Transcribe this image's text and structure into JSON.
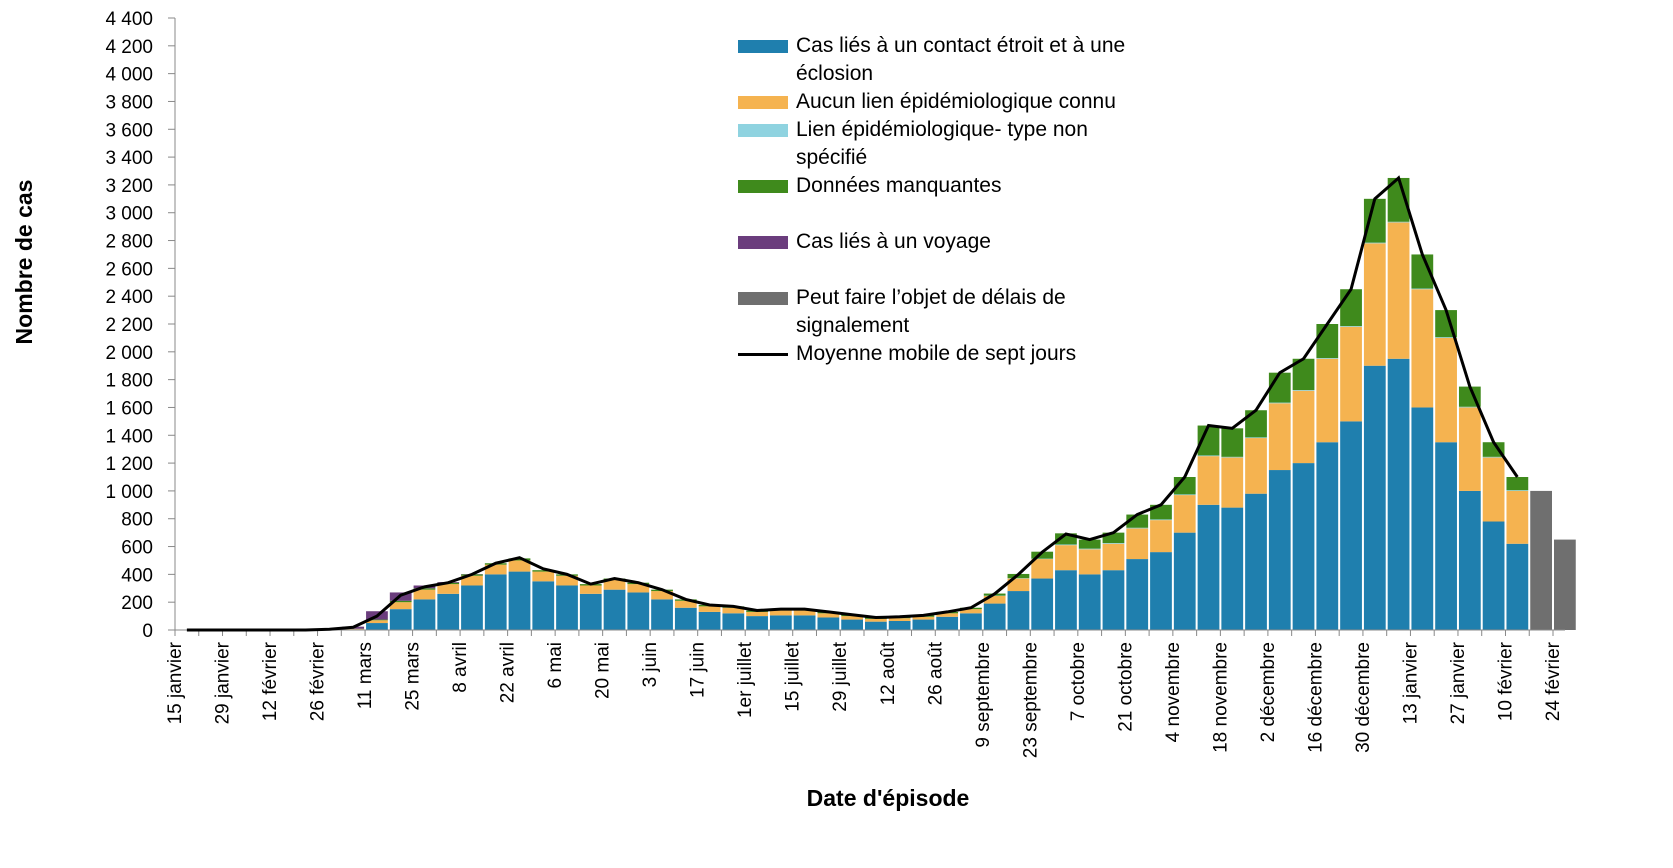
{
  "chart_data": {
    "type": "bar",
    "stacked": true,
    "y_label": "Nombre de cas",
    "x_label": "Date d'épisode",
    "categories": [
      "15 janvier",
      null,
      "29 janvier",
      null,
      "12 février",
      null,
      "26 février",
      null,
      "11 mars",
      null,
      "25 mars",
      null,
      "8 avril",
      null,
      "22 avril",
      null,
      "6 mai",
      null,
      "20 mai",
      null,
      "3 juin",
      null,
      "17 juin",
      null,
      "1er juillet",
      null,
      "15 juillet",
      null,
      "29 juillet",
      null,
      "12 août",
      null,
      "26 août",
      null,
      "9 septembre",
      null,
      "23 septembre",
      null,
      "7 octobre",
      null,
      "21 octobre",
      null,
      "4 novembre",
      null,
      "18 novembre",
      null,
      "2 décembre",
      null,
      "16 décembre",
      null,
      "30 décembre",
      null,
      "13 janvier",
      null,
      "27 janvier",
      null,
      "10 février",
      null,
      "24 février"
    ],
    "ylim": [
      0,
      4400
    ],
    "yticks": [
      0,
      200,
      400,
      600,
      800,
      {
        "value": 1000,
        "label": "1 000"
      },
      {
        "value": 1200,
        "label": "1 200"
      },
      {
        "value": 1400,
        "label": "1 400"
      },
      {
        "value": 1600,
        "label": "1 600"
      },
      {
        "value": 1800,
        "label": "1 800"
      },
      {
        "value": 2000,
        "label": "2 000"
      },
      {
        "value": 2200,
        "label": "2 200"
      },
      {
        "value": 2400,
        "label": "2 400"
      },
      {
        "value": 2600,
        "label": "2 600"
      },
      {
        "value": 2800,
        "label": "2 800"
      },
      {
        "value": 3000,
        "label": "3 000"
      },
      {
        "value": 3200,
        "label": "3 200"
      },
      {
        "value": 3400,
        "label": "3 400"
      },
      {
        "value": 3600,
        "label": "3 600"
      },
      {
        "value": 3800,
        "label": "3 800"
      },
      {
        "value": 4000,
        "label": "4 000"
      },
      {
        "value": 4200,
        "label": "4 200"
      },
      {
        "value": 4400,
        "label": "4 400"
      }
    ],
    "series": [
      {
        "name": "Cas liés à un contact étroit et à une éclosion",
        "color": "#1f7fae",
        "values": [
          0,
          0,
          0,
          0,
          0,
          0,
          2,
          5,
          50,
          150,
          220,
          260,
          320,
          400,
          420,
          350,
          320,
          260,
          290,
          270,
          220,
          160,
          130,
          120,
          100,
          105,
          105,
          90,
          75,
          60,
          65,
          75,
          95,
          120,
          190,
          280,
          370,
          430,
          400,
          430,
          510,
          560,
          700,
          900,
          880,
          980,
          1150,
          1200,
          1350,
          1500,
          1900,
          1950,
          1600,
          1350,
          1000,
          780,
          620,
          0,
          0
        ]
      },
      {
        "name": "Aucun lien épidémiologique connu",
        "color": "#f5b350",
        "values": [
          0,
          0,
          0,
          0,
          0,
          0,
          1,
          3,
          20,
          50,
          70,
          70,
          70,
          70,
          80,
          70,
          70,
          60,
          70,
          60,
          60,
          50,
          40,
          40,
          30,
          35,
          35,
          30,
          25,
          20,
          20,
          20,
          25,
          30,
          55,
          90,
          140,
          180,
          180,
          190,
          220,
          230,
          270,
          350,
          360,
          400,
          480,
          520,
          600,
          680,
          880,
          980,
          850,
          750,
          600,
          460,
          380,
          0,
          0
        ]
      },
      {
        "name": "Lien épidémiologique- type non spécifié",
        "color": "#8fd3e0",
        "values": [
          0,
          0,
          0,
          0,
          0,
          0,
          0,
          0,
          0,
          0,
          0,
          0,
          0,
          0,
          0,
          0,
          0,
          0,
          0,
          0,
          0,
          0,
          0,
          0,
          0,
          0,
          0,
          0,
          0,
          0,
          0,
          0,
          0,
          0,
          2,
          3,
          3,
          5,
          5,
          5,
          5,
          5,
          5,
          5,
          5,
          5,
          5,
          5,
          5,
          5,
          5,
          5,
          5,
          5,
          5,
          5,
          5,
          0,
          0
        ]
      },
      {
        "name": "Données manquantes",
        "color": "#3f8a1c",
        "values": [
          0,
          0,
          0,
          0,
          0,
          0,
          0,
          1,
          5,
          10,
          10,
          10,
          10,
          10,
          15,
          10,
          10,
          10,
          10,
          10,
          10,
          10,
          10,
          10,
          10,
          10,
          10,
          10,
          10,
          10,
          10,
          10,
          10,
          10,
          15,
          30,
          50,
          80,
          65,
          75,
          95,
          105,
          125,
          215,
          205,
          195,
          215,
          225,
          245,
          265,
          315,
          315,
          245,
          195,
          145,
          105,
          95,
          0,
          0
        ]
      },
      {
        "name": "Cas liés à un voyage",
        "color": "#6b3d7d",
        "values": [
          0,
          0,
          0,
          0,
          0,
          0,
          3,
          15,
          60,
          60,
          20,
          5,
          2,
          0,
          0,
          0,
          0,
          0,
          0,
          0,
          0,
          0,
          0,
          0,
          0,
          0,
          0,
          0,
          0,
          0,
          0,
          0,
          0,
          0,
          0,
          0,
          0,
          0,
          0,
          0,
          0,
          0,
          0,
          0,
          0,
          0,
          0,
          0,
          0,
          0,
          0,
          0,
          0,
          0,
          0,
          0,
          0,
          0,
          0
        ]
      },
      {
        "name": "Peut faire l’objet de délais de signalement",
        "color": "#6f6f6f",
        "values": [
          0,
          0,
          0,
          0,
          0,
          0,
          0,
          0,
          0,
          0,
          0,
          0,
          0,
          0,
          0,
          0,
          0,
          0,
          0,
          0,
          0,
          0,
          0,
          0,
          0,
          0,
          0,
          0,
          0,
          0,
          0,
          0,
          0,
          0,
          0,
          0,
          0,
          0,
          0,
          0,
          0,
          0,
          0,
          0,
          0,
          0,
          0,
          0,
          0,
          0,
          0,
          0,
          0,
          0,
          0,
          0,
          0,
          1000,
          650
        ]
      }
    ],
    "line": {
      "name": "Moyenne mobile de sept jours",
      "color": "#000000",
      "values": [
        0,
        0,
        0,
        0,
        0,
        0,
        5,
        20,
        100,
        250,
        310,
        340,
        400,
        480,
        520,
        440,
        400,
        330,
        370,
        340,
        290,
        220,
        180,
        170,
        140,
        150,
        150,
        130,
        110,
        90,
        95,
        105,
        130,
        160,
        260,
        400,
        560,
        690,
        650,
        700,
        830,
        900,
        1100,
        1470,
        1450,
        1580,
        1850,
        1950,
        2200,
        2450,
        3100,
        3250,
        2700,
        2300,
        1750,
        1350,
        1100,
        null,
        null
      ]
    }
  }
}
